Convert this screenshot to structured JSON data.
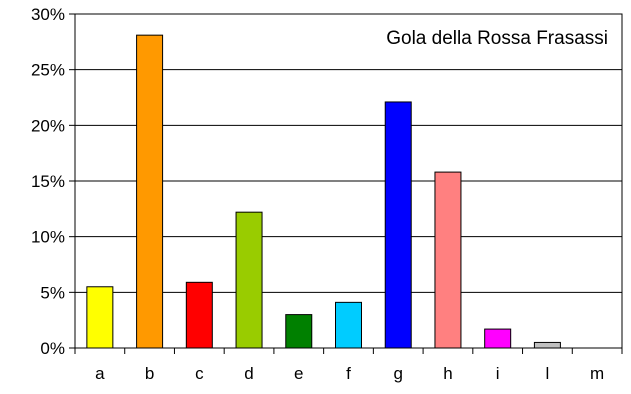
{
  "chart_data": {
    "type": "bar",
    "title": "Gola della Rossa Frasassi",
    "xlabel": "",
    "ylabel": "",
    "categories": [
      "a",
      "b",
      "c",
      "d",
      "e",
      "f",
      "g",
      "h",
      "i",
      "l",
      "m"
    ],
    "values": [
      5.5,
      28.1,
      5.9,
      12.2,
      3.0,
      4.1,
      22.1,
      15.8,
      1.7,
      0.5,
      0.0
    ],
    "colors": [
      "#ffff00",
      "#ff9900",
      "#ff0000",
      "#99cc00",
      "#008000",
      "#00ccff",
      "#0000ff",
      "#ff8080",
      "#ff00ff",
      "#c0c0c0",
      "#c0c0c0"
    ],
    "ylim": [
      0,
      30
    ],
    "yticks": [
      0,
      5,
      10,
      15,
      20,
      25,
      30
    ],
    "ytick_labels": [
      "0%",
      "5%",
      "10%",
      "15%",
      "20%",
      "25%",
      "30%"
    ],
    "grid": true,
    "legend": "none"
  }
}
